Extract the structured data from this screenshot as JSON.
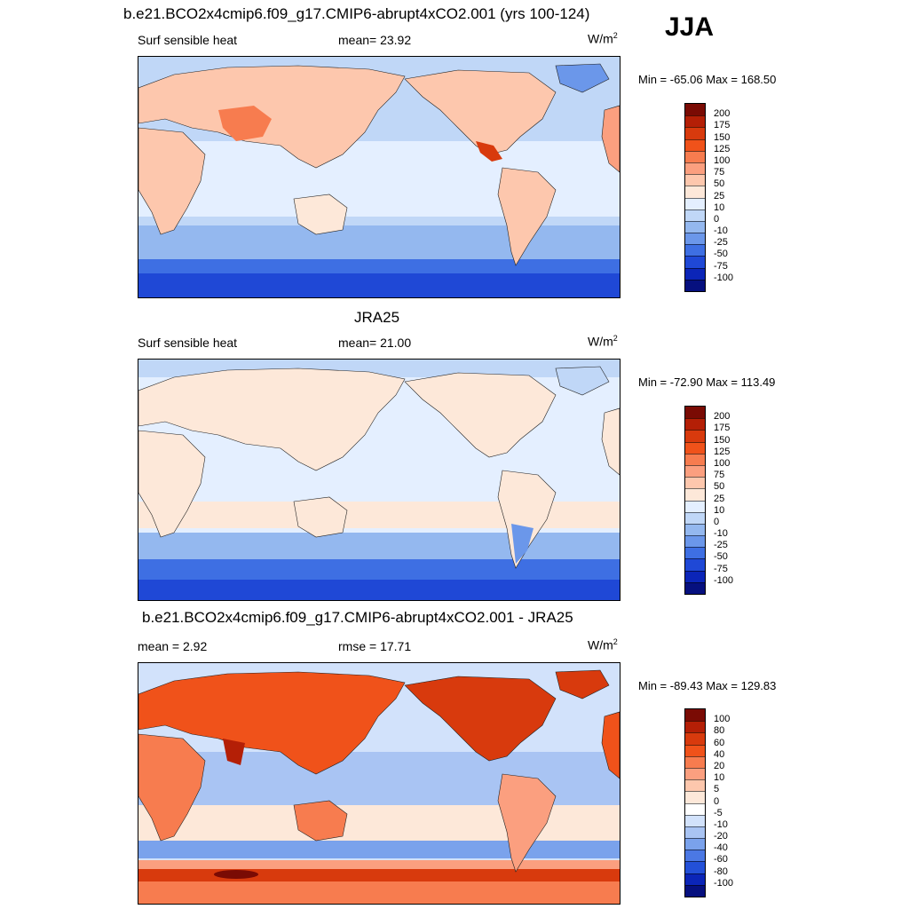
{
  "season": "JJA",
  "chart_data": [
    {
      "type": "heatmap",
      "title": "b.e21.BCO2x4cmip6.f09_g17.CMIP6-abrupt4xCO2.001 (yrs 100-124)",
      "left_label": "Surf sensible heat",
      "center_label": "mean=  23.92",
      "units": "W/m",
      "units_sup": "2",
      "minmax": "Min = -65.06 Max = 168.50",
      "colorbar": {
        "levels": [
          "200",
          "175",
          "150",
          "125",
          "100",
          "75",
          "50",
          "25",
          "10",
          "0",
          "-10",
          "-25",
          "-50",
          "-75",
          "-100"
        ],
        "colors": [
          "#7a0b04",
          "#b41f06",
          "#d83a0d",
          "#f0521a",
          "#f77c4f",
          "#fb9f7f",
          "#fdc7ad",
          "#fde8d9",
          "#e4efff",
          "#c0d7f7",
          "#94b8ef",
          "#6b97ea",
          "#3e6fe3",
          "#1f48d6",
          "#0b25b8",
          "#06107f"
        ]
      }
    },
    {
      "type": "heatmap",
      "title": "JRA25",
      "left_label": "Surf sensible heat",
      "center_label": "mean=  21.00",
      "units": "W/m",
      "units_sup": "2",
      "minmax": "Min = -72.90 Max = 113.49",
      "colorbar": {
        "levels": [
          "200",
          "175",
          "150",
          "125",
          "100",
          "75",
          "50",
          "25",
          "10",
          "0",
          "-10",
          "-25",
          "-50",
          "-75",
          "-100"
        ],
        "colors": [
          "#7a0b04",
          "#b41f06",
          "#d83a0d",
          "#f0521a",
          "#f77c4f",
          "#fb9f7f",
          "#fdc7ad",
          "#fde8d9",
          "#e4efff",
          "#c0d7f7",
          "#94b8ef",
          "#6b97ea",
          "#3e6fe3",
          "#1f48d6",
          "#0b25b8",
          "#06107f"
        ]
      }
    },
    {
      "type": "heatmap",
      "title": "b.e21.BCO2x4cmip6.f09_g17.CMIP6-abrupt4xCO2.001 - JRA25",
      "left_label": "mean =   2.92",
      "center_label": "rmse =  17.71",
      "units": "W/m",
      "units_sup": "2",
      "minmax": "Min = -89.43 Max = 129.83",
      "colorbar": {
        "levels": [
          "100",
          "80",
          "60",
          "40",
          "20",
          "10",
          "5",
          "0",
          "-5",
          "-10",
          "-20",
          "-40",
          "-60",
          "-80",
          "-100"
        ],
        "colors": [
          "#7a0b04",
          "#b41f06",
          "#d83a0d",
          "#f0521a",
          "#f77c4f",
          "#fb9f7f",
          "#fdc7ad",
          "#fde8d9",
          "#ffffff",
          "#d2e2fb",
          "#a9c4f3",
          "#7aa2ec",
          "#4b78e4",
          "#2350d8",
          "#0b25b8",
          "#06107f"
        ]
      }
    }
  ]
}
